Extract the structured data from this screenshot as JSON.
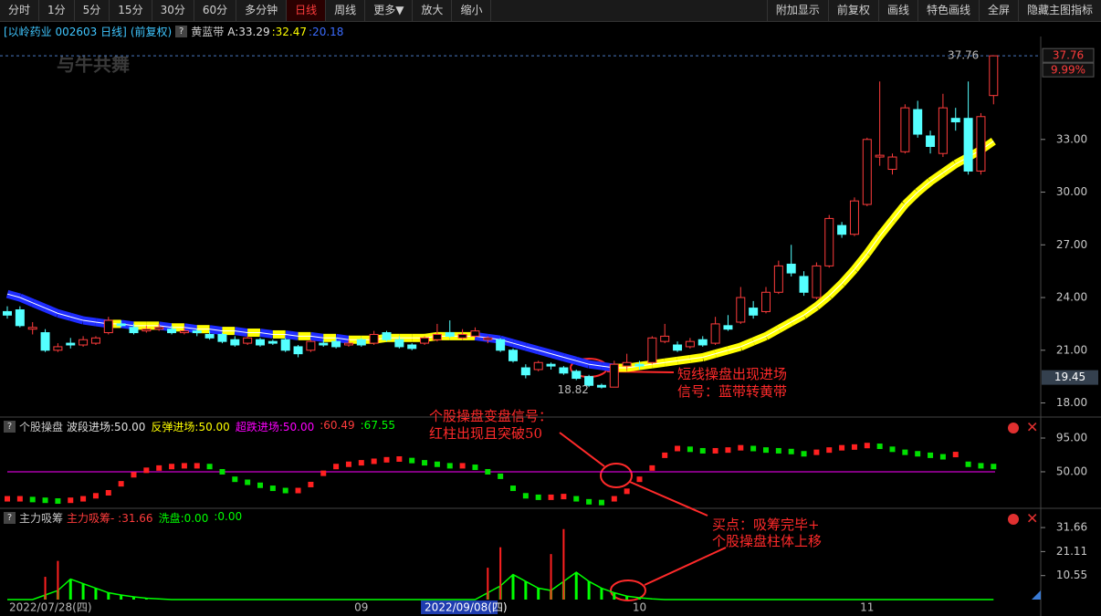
{
  "toolbar": {
    "left": [
      "分时",
      "1分",
      "5分",
      "15分",
      "30分",
      "60分",
      "多分钟",
      "日线",
      "周线",
      "更多▼",
      "放大",
      "缩小"
    ],
    "active_index": 7,
    "right": [
      "附加显示",
      "前复权",
      "画线",
      "特色画线",
      "全屏",
      "隐藏主图指标"
    ]
  },
  "watermark": "与牛共舞",
  "chart_data": [
    {
      "type": "candlestick",
      "title": "[以岭药业 002603 日线]",
      "subtitle": "(前复权)",
      "indicator_name": "黄蓝带",
      "legend": [
        {
          "text": "A:33.29",
          "color": "#e0e0e0"
        },
        {
          "text": ":32.47",
          "color": "#ffff00"
        },
        {
          "text": ":20.18",
          "color": "#3b6cff"
        }
      ],
      "up_color": "#ff3c3c",
      "down_color": "#54ffff",
      "ohlc": [
        [
          23.2,
          23.5,
          22.8,
          23.0
        ],
        [
          23.3,
          23.5,
          22.3,
          22.4
        ],
        [
          22.2,
          22.6,
          21.9,
          22.3
        ],
        [
          22.0,
          22.2,
          20.9,
          21.0
        ],
        [
          21.0,
          21.4,
          20.9,
          21.2
        ],
        [
          21.4,
          21.7,
          21.1,
          21.3
        ],
        [
          21.3,
          21.8,
          21.2,
          21.6
        ],
        [
          21.4,
          21.8,
          21.3,
          21.7
        ],
        [
          22.0,
          22.9,
          21.9,
          22.7
        ],
        [
          22.5,
          22.7,
          22.3,
          22.4
        ],
        [
          22.3,
          22.5,
          21.9,
          22.0
        ],
        [
          22.1,
          22.4,
          22.0,
          22.2
        ],
        [
          22.2,
          22.5,
          22.1,
          22.3
        ],
        [
          22.2,
          22.4,
          21.9,
          22.0
        ],
        [
          22.0,
          22.3,
          21.9,
          22.1
        ],
        [
          22.1,
          22.2,
          21.8,
          22.0
        ],
        [
          21.9,
          22.1,
          21.6,
          21.7
        ],
        [
          21.9,
          22.0,
          21.4,
          21.5
        ],
        [
          21.6,
          21.8,
          21.2,
          21.3
        ],
        [
          21.4,
          21.8,
          21.3,
          21.7
        ],
        [
          21.6,
          21.7,
          21.2,
          21.3
        ],
        [
          21.5,
          21.6,
          21.3,
          21.4
        ],
        [
          21.6,
          21.7,
          20.9,
          21.0
        ],
        [
          21.2,
          21.3,
          20.6,
          20.8
        ],
        [
          21.0,
          21.6,
          20.9,
          21.5
        ],
        [
          21.4,
          21.6,
          21.2,
          21.3
        ],
        [
          21.5,
          21.7,
          21.1,
          21.2
        ],
        [
          21.3,
          21.6,
          21.2,
          21.4
        ],
        [
          21.6,
          21.7,
          21.2,
          21.3
        ],
        [
          21.4,
          22.1,
          21.3,
          21.9
        ],
        [
          22.0,
          22.1,
          21.5,
          21.6
        ],
        [
          21.6,
          21.8,
          21.1,
          21.2
        ],
        [
          21.3,
          21.4,
          21.0,
          21.1
        ],
        [
          21.4,
          21.8,
          21.3,
          21.7
        ],
        [
          21.6,
          22.5,
          21.5,
          21.9
        ],
        [
          22.0,
          22.7,
          21.7,
          21.8
        ],
        [
          21.7,
          22.2,
          21.6,
          21.9
        ],
        [
          21.8,
          22.3,
          21.7,
          22.1
        ],
        [
          21.6,
          21.8,
          21.4,
          21.7
        ],
        [
          21.6,
          21.7,
          20.9,
          21.0
        ],
        [
          21.0,
          21.1,
          20.3,
          20.4
        ],
        [
          20.0,
          20.2,
          19.4,
          19.6
        ],
        [
          19.9,
          20.4,
          19.8,
          20.3
        ],
        [
          20.2,
          20.3,
          19.9,
          20.1
        ],
        [
          20.0,
          20.1,
          19.6,
          19.7
        ],
        [
          19.8,
          19.9,
          19.3,
          19.4
        ],
        [
          19.5,
          19.6,
          18.9,
          19.0
        ],
        [
          19.0,
          19.1,
          18.82,
          18.9
        ],
        [
          18.9,
          20.4,
          18.9,
          20.2
        ],
        [
          20.1,
          20.8,
          19.9,
          20.3
        ],
        [
          20.2,
          20.4,
          19.9,
          20.1
        ],
        [
          20.3,
          21.8,
          20.2,
          21.7
        ],
        [
          21.5,
          22.5,
          21.4,
          21.8
        ],
        [
          21.3,
          21.5,
          20.9,
          21.0
        ],
        [
          21.2,
          21.7,
          21.1,
          21.5
        ],
        [
          21.6,
          21.8,
          21.2,
          21.3
        ],
        [
          21.4,
          22.9,
          21.3,
          22.5
        ],
        [
          22.4,
          23.0,
          22.1,
          22.2
        ],
        [
          22.6,
          24.6,
          22.5,
          24.0
        ],
        [
          23.4,
          23.8,
          22.8,
          23.0
        ],
        [
          23.2,
          24.6,
          23.1,
          24.3
        ],
        [
          24.3,
          26.1,
          24.2,
          25.8
        ],
        [
          25.9,
          27.0,
          25.2,
          25.4
        ],
        [
          25.2,
          25.5,
          24.1,
          24.3
        ],
        [
          24.0,
          26.0,
          23.9,
          25.8
        ],
        [
          25.8,
          28.7,
          25.7,
          28.5
        ],
        [
          28.1,
          28.3,
          27.4,
          27.6
        ],
        [
          27.6,
          29.7,
          27.5,
          29.5
        ],
        [
          29.3,
          33.1,
          29.2,
          33.0
        ],
        [
          32.0,
          36.3,
          31.5,
          32.1
        ],
        [
          31.3,
          32.2,
          31.0,
          32.0
        ],
        [
          32.3,
          35.0,
          32.2,
          34.8
        ],
        [
          34.7,
          35.2,
          33.1,
          33.3
        ],
        [
          33.2,
          33.5,
          32.2,
          32.6
        ],
        [
          32.2,
          35.6,
          32.0,
          34.8
        ],
        [
          34.2,
          34.8,
          33.5,
          34.0
        ],
        [
          34.2,
          36.3,
          31.0,
          31.2
        ],
        [
          31.2,
          34.5,
          31.0,
          34.3
        ],
        [
          35.5,
          37.76,
          35.0,
          37.76
        ]
      ],
      "band": {
        "values": [
          24.2,
          24.0,
          23.7,
          23.4,
          23.1,
          22.9,
          22.7,
          22.6,
          22.5,
          22.5,
          22.4,
          22.4,
          22.4,
          22.3,
          22.3,
          22.2,
          22.2,
          22.1,
          22.1,
          22.0,
          22.0,
          21.9,
          21.9,
          21.8,
          21.8,
          21.7,
          21.7,
          21.6,
          21.6,
          21.6,
          21.7,
          21.7,
          21.7,
          21.7,
          21.8,
          21.8,
          21.8,
          21.8,
          21.7,
          21.6,
          21.4,
          21.2,
          21.0,
          20.8,
          20.6,
          20.4,
          20.2,
          20.1,
          20.0,
          20.0,
          20.1,
          20.2,
          20.3,
          20.4,
          20.5,
          20.6,
          20.8,
          21.0,
          21.2,
          21.5,
          21.8,
          22.2,
          22.6,
          23.0,
          23.5,
          24.1,
          24.8,
          25.6,
          26.5,
          27.5,
          28.4,
          29.3,
          30.0,
          30.6,
          31.1,
          31.6,
          32.0,
          32.4,
          32.9
        ],
        "rising_color": "#ffff00",
        "falling_color": "#1e2cff"
      },
      "ylim": [
        17.3,
        38.6
      ],
      "yticks": [
        {
          "value": 18,
          "label": "18.00"
        },
        {
          "value": 21,
          "label": "21.00"
        },
        {
          "value": 24,
          "label": "24.00"
        },
        {
          "value": 27,
          "label": "27.00"
        },
        {
          "value": 30,
          "label": "30.00"
        },
        {
          "value": 33,
          "label": "33.00"
        }
      ],
      "high_label": {
        "value": 37.76,
        "label": "37.76"
      },
      "low_label": {
        "value": 18.82,
        "label": "18.82"
      },
      "last_label": {
        "value": 37.76,
        "label": "37.76"
      },
      "change_label": "9.99%",
      "cursor_label": {
        "value": 19.45,
        "label": "19.45"
      },
      "annotation": [
        "短线操盘出现进场",
        "信号：蓝带转黄带"
      ]
    },
    {
      "type": "bar",
      "indicator_name": "个股操盘",
      "legend": [
        {
          "text": "波段进场:50.00",
          "color": "#e0e0e0"
        },
        {
          "text": "反弹进场:50.00",
          "color": "#ffff00"
        },
        {
          "text": "超跌进场:50.00",
          "color": "#ff00ff"
        },
        {
          "text": ":60.49",
          "color": "#ff3c3c"
        },
        {
          "text": ":67.55",
          "color": "#00ff00"
        }
      ],
      "values": [
        14,
        14,
        13,
        12,
        11,
        12,
        14,
        18,
        22,
        34,
        46,
        52,
        55,
        57,
        58,
        58,
        57,
        50,
        40,
        36,
        32,
        28,
        25,
        25,
        33,
        48,
        57,
        60,
        62,
        64,
        66,
        67,
        65,
        62,
        60,
        58,
        58,
        56,
        50,
        44,
        28,
        18,
        16,
        16,
        17,
        14,
        10,
        9,
        14,
        24,
        40,
        55,
        72,
        81,
        80,
        78,
        78,
        79,
        82,
        81,
        79,
        78,
        77,
        74,
        76,
        79,
        82,
        83,
        85,
        84,
        80,
        76,
        74,
        72,
        70,
        73,
        60,
        58,
        57
      ],
      "up_color": "#ff2020",
      "down_color": "#00e000",
      "reference_line": {
        "value": 50,
        "color": "#ff00ff"
      },
      "ylim": [
        1.3,
        103.5
      ],
      "yticks": [
        {
          "value": 50,
          "label": "50.00"
        },
        {
          "value": 95,
          "label": "95.00"
        }
      ],
      "annotation": [
        "个股操盘变盘信号：",
        "红柱出现且突破50"
      ]
    },
    {
      "type": "bar",
      "indicator_name": "主力吸筹",
      "legend": [
        {
          "text": "主力吸筹- :31.66",
          "color": "#ff3c3c"
        },
        {
          "text": "洗盘:0.00",
          "color": "#00ff00"
        },
        {
          "text": ":0.00",
          "color": "#00ff00"
        }
      ],
      "series": [
        {
          "name": "主力吸筹",
          "color": "#ff2020",
          "values": [
            0,
            0,
            0,
            10,
            17,
            0,
            0,
            0,
            0,
            0,
            0,
            0,
            0,
            0,
            0,
            0,
            0,
            0,
            0,
            0,
            0,
            0,
            0,
            0,
            0,
            0,
            0,
            0,
            0,
            0,
            0,
            0,
            0,
            0,
            0,
            0,
            0,
            0,
            14,
            23,
            0,
            0,
            0,
            20,
            31,
            0,
            0,
            0,
            0,
            0,
            0,
            0,
            0,
            0,
            0,
            0,
            0,
            0,
            0,
            0,
            0,
            0,
            0,
            0,
            0,
            0,
            0,
            0,
            0,
            0,
            0,
            0,
            0,
            0,
            0,
            0,
            0,
            0,
            0
          ]
        },
        {
          "name": "洗盘",
          "color": "#00ff00",
          "values": [
            0,
            0,
            0,
            2,
            4,
            9,
            7,
            5,
            3,
            2,
            1.2,
            0.6,
            0.3,
            0,
            0,
            0,
            0,
            0,
            0,
            0,
            0,
            0,
            0,
            0,
            0,
            0,
            0,
            0,
            0,
            0,
            0,
            0,
            0,
            0,
            0,
            0,
            0,
            0,
            3,
            6,
            11,
            8,
            5,
            4,
            8,
            12,
            8,
            5,
            3,
            1.5,
            0.8,
            0.3,
            0,
            0,
            0,
            0,
            0,
            0,
            0,
            0,
            0,
            0,
            0,
            0,
            0,
            0,
            0,
            0,
            0,
            0,
            0,
            0,
            0,
            0,
            0,
            0,
            0,
            0,
            0
          ]
        }
      ],
      "ylim": [
        0,
        33.7
      ],
      "yticks": [
        {
          "value": 10.55,
          "label": "10.55"
        },
        {
          "value": 21.11,
          "label": "21.11"
        },
        {
          "value": 31.66,
          "label": "31.66"
        }
      ],
      "categories": [
        "2022/07/28(四)",
        null,
        null,
        null,
        null,
        null,
        null,
        null,
        null,
        null,
        null,
        null,
        null,
        null,
        null,
        null,
        null,
        null,
        null,
        null,
        null,
        null,
        null,
        null,
        null,
        null,
        null,
        null,
        "09",
        null,
        null,
        null,
        null,
        "2022/09/08(四)",
        null,
        null,
        null,
        null,
        null,
        null,
        null,
        null,
        null,
        null,
        null,
        null,
        null,
        null,
        null,
        null,
        "10",
        null,
        null,
        null,
        null,
        null,
        null,
        null,
        null,
        null,
        null,
        null,
        null,
        null,
        null,
        null,
        null,
        null,
        "11",
        null,
        null,
        null,
        null,
        null,
        null,
        null,
        null,
        null,
        null
      ],
      "highlight_category": 33,
      "annotation": [
        "买点：吸筹完毕+",
        "个股操盘柱体上移"
      ]
    }
  ]
}
